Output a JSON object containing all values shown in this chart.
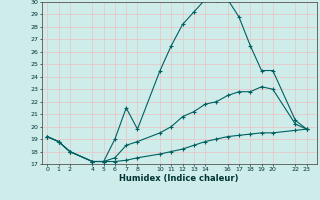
{
  "xlabel": "Humidex (Indice chaleur)",
  "bg_color": "#ceecea",
  "grid_color": "#e8c8c8",
  "line_color": "#006060",
  "ylim": [
    17,
    30
  ],
  "yticks": [
    17,
    18,
    19,
    20,
    21,
    22,
    23,
    24,
    25,
    26,
    27,
    28,
    29,
    30
  ],
  "xticks": [
    0,
    1,
    2,
    4,
    5,
    6,
    7,
    8,
    10,
    11,
    12,
    13,
    14,
    16,
    17,
    18,
    19,
    20,
    22,
    23
  ],
  "xlim": [
    -0.5,
    23.9
  ],
  "line1_x": [
    0,
    1,
    2,
    4,
    5,
    6,
    7,
    8,
    10,
    11,
    12,
    13,
    14,
    15,
    16,
    17,
    18,
    19,
    20,
    22,
    23
  ],
  "line1_y": [
    19.2,
    18.8,
    18.0,
    17.2,
    17.2,
    19.0,
    21.5,
    19.8,
    24.5,
    26.5,
    28.2,
    29.2,
    30.2,
    30.2,
    30.2,
    28.8,
    26.5,
    24.5,
    24.5,
    20.5,
    19.8
  ],
  "line2_x": [
    0,
    1,
    2,
    4,
    5,
    6,
    7,
    8,
    10,
    11,
    12,
    13,
    14,
    15,
    16,
    17,
    18,
    19,
    20,
    22,
    23
  ],
  "line2_y": [
    19.2,
    18.8,
    18.0,
    17.2,
    17.2,
    17.5,
    18.5,
    18.8,
    19.5,
    20.0,
    20.8,
    21.2,
    21.8,
    22.0,
    22.5,
    22.8,
    22.8,
    23.2,
    23.0,
    20.2,
    19.8
  ],
  "line3_x": [
    0,
    1,
    2,
    4,
    5,
    6,
    7,
    8,
    10,
    11,
    12,
    13,
    14,
    15,
    16,
    17,
    18,
    19,
    20,
    22,
    23
  ],
  "line3_y": [
    19.2,
    18.8,
    18.0,
    17.2,
    17.2,
    17.2,
    17.3,
    17.5,
    17.8,
    18.0,
    18.2,
    18.5,
    18.8,
    19.0,
    19.2,
    19.3,
    19.4,
    19.5,
    19.5,
    19.7,
    19.8
  ]
}
